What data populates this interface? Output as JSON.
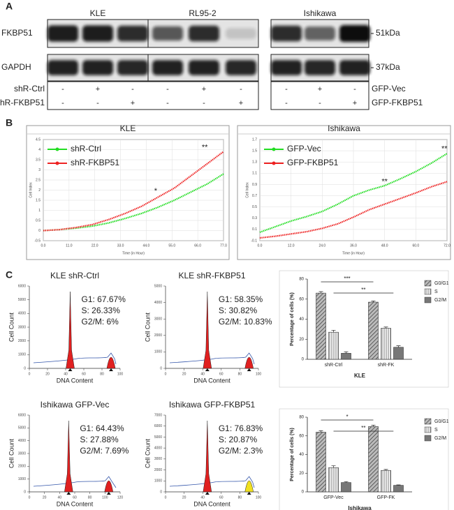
{
  "panel_labels": [
    "A",
    "B",
    "C"
  ],
  "blot": {
    "groups": [
      "KLE",
      "RL95-2",
      "Ishikawa"
    ],
    "rows": [
      "FKBP51",
      "GAPDH"
    ],
    "sizes": [
      "51kDa",
      "37kDa"
    ],
    "treatments_left": [
      {
        "name": "shR-Ctrl",
        "signs": [
          "-",
          "+",
          "-",
          "-",
          "+",
          "-"
        ]
      },
      {
        "name": "shR-FKBP51",
        "signs": [
          "-",
          "-",
          "+",
          "-",
          "-",
          "+"
        ]
      }
    ],
    "treatments_right": [
      {
        "name": "GFP-Vec",
        "signs": [
          "-",
          "+",
          "-"
        ]
      },
      {
        "name": "GFP-FKBP51",
        "signs": [
          "-",
          "-",
          "+"
        ]
      }
    ]
  },
  "chart_data": [
    {
      "type": "line",
      "title": "KLE",
      "xlabel": "Time (in Hour)",
      "ylabel": "Cell Index",
      "legend": "upper left",
      "grid": true,
      "x": [
        0,
        7,
        14,
        21,
        28,
        35,
        42,
        49,
        56,
        63,
        70,
        77
      ],
      "series": [
        {
          "name": "shR-Ctrl",
          "color": "#22dd22",
          "values": [
            0,
            0.05,
            0.12,
            0.22,
            0.38,
            0.6,
            0.85,
            1.15,
            1.5,
            1.9,
            2.3,
            2.8
          ]
        },
        {
          "name": "shR-FKBP51",
          "color": "#ee2222",
          "values": [
            0,
            0.05,
            0.15,
            0.3,
            0.55,
            0.85,
            1.2,
            1.65,
            2.1,
            2.7,
            3.3,
            3.9
          ]
        }
      ],
      "xlim": [
        0,
        77
      ],
      "ylim": [
        -0.5,
        4.5
      ],
      "xticks": [
        {
          "value": 0,
          "label": "0.0"
        },
        {
          "value": 11,
          "label": "11.0"
        },
        {
          "value": 22,
          "label": "22.0"
        },
        {
          "value": 33,
          "label": "33.0"
        },
        {
          "value": 44,
          "label": "44.0"
        },
        {
          "value": 55,
          "label": "55.0"
        },
        {
          "value": 66,
          "label": "66.0"
        },
        {
          "value": 77,
          "label": "77.0"
        }
      ],
      "yticks": [
        -0.5,
        0,
        0.5,
        1,
        1.5,
        2,
        2.5,
        3,
        3.5,
        4,
        4.5
      ],
      "annotations": [
        {
          "text": "*",
          "x": 48,
          "y": 1.95
        },
        {
          "text": "**",
          "x": 69,
          "y": 4.1
        }
      ]
    },
    {
      "type": "line",
      "title": "Ishikawa",
      "xlabel": "Time (in Hour)",
      "ylabel": "Cell Index",
      "legend": "upper left",
      "grid": true,
      "x": [
        0,
        6,
        12,
        18,
        24,
        30,
        36,
        42,
        48,
        54,
        60,
        66,
        72
      ],
      "series": [
        {
          "name": "GFP-Vec",
          "color": "#22dd22",
          "values": [
            0.05,
            0.15,
            0.25,
            0.33,
            0.42,
            0.55,
            0.7,
            0.8,
            0.88,
            1.0,
            1.13,
            1.28,
            1.45
          ]
        },
        {
          "name": "GFP-FKBP51",
          "color": "#ee2222",
          "values": [
            -0.05,
            -0.02,
            0.02,
            0.06,
            0.12,
            0.2,
            0.32,
            0.45,
            0.55,
            0.65,
            0.75,
            0.86,
            0.95
          ]
        }
      ],
      "xlim": [
        0,
        72
      ],
      "ylim": [
        -0.1,
        1.7
      ],
      "xticks": [
        {
          "value": 0,
          "label": "0.0"
        },
        {
          "value": 12,
          "label": "12.0"
        },
        {
          "value": 24,
          "label": "24.0"
        },
        {
          "value": 36,
          "label": "36.0"
        },
        {
          "value": 48,
          "label": "48.0"
        },
        {
          "value": 60,
          "label": "60.0"
        },
        {
          "value": 72,
          "label": "72.0"
        }
      ],
      "yticks": [
        -0.1,
        0.1,
        0.3,
        0.5,
        0.7,
        0.9,
        1.1,
        1.3,
        1.5,
        1.7
      ],
      "annotations": [
        {
          "text": "**",
          "x": 48,
          "y": 0.95
        },
        {
          "text": "**",
          "x": 71,
          "y": 1.53
        }
      ]
    },
    {
      "type": "flow",
      "title": "KLE shR-Ctrl",
      "xlabel": "DNA Content",
      "ylabel": "Cell Count",
      "annotations": [
        "G1: 67.67%",
        "S: 26.33%",
        "G2/M: 6%"
      ],
      "xlim": [
        0,
        100
      ],
      "xticks": [
        0,
        20,
        40,
        60,
        80,
        100
      ],
      "ylim": [
        0,
        6000
      ],
      "yticks": [
        0,
        1000,
        2000,
        3000,
        4000,
        5000,
        6000
      ]
    },
    {
      "type": "flow",
      "title": "KLE shR-FKBP51",
      "xlabel": "DNA Content",
      "ylabel": "Cell Count",
      "annotations": [
        "G1: 58.35%",
        "S: 30.82%",
        "G2/M: 10.83%"
      ],
      "xlim": [
        0,
        100
      ],
      "xticks": [
        0,
        20,
        40,
        60,
        80,
        100
      ],
      "ylim": [
        0,
        5000
      ],
      "yticks": [
        0,
        1000,
        2000,
        3000,
        4000,
        5000
      ]
    },
    {
      "type": "flow",
      "title": "Ishikawa  GFP-Vec",
      "xlabel": "DNA Content",
      "ylabel": "Cell Count",
      "annotations": [
        "G1: 64.43%",
        "S: 27.88%",
        "G2/M: 7.69%"
      ],
      "xlim": [
        0,
        120
      ],
      "xticks": [
        0,
        20,
        40,
        60,
        80,
        100,
        120
      ],
      "ylim": [
        0,
        6000
      ],
      "yticks": [
        0,
        1000,
        2000,
        3000,
        4000,
        5000,
        6000
      ]
    },
    {
      "type": "flow",
      "title": "Ishikawa  GFP-FKBP51",
      "xlabel": "DNA Content",
      "ylabel": "Cell Count",
      "annotations": [
        "G1: 76.83%",
        "S: 20.87%",
        "G2/M: 2.3%"
      ],
      "xlim": [
        0,
        100
      ],
      "xticks": [
        0,
        20,
        40,
        60,
        80,
        100
      ],
      "ylim": [
        0,
        7000
      ],
      "yticks": [
        0,
        1000,
        2000,
        3000,
        4000,
        5000,
        6000,
        7000
      ]
    },
    {
      "type": "bar",
      "xlabel": "KLE",
      "ylabel": "Percentage of cells (%)",
      "categories": [
        "shR-Ctrl",
        "shR-FK"
      ],
      "series": [
        {
          "name": "G0/G1",
          "color": "#999999",
          "hatch": "diagonal",
          "values": [
            66,
            57
          ],
          "errors": [
            1.5,
            1.2
          ]
        },
        {
          "name": "S",
          "color": "#ffffff",
          "hatch": "vertical",
          "values": [
            27,
            31
          ],
          "errors": [
            2,
            1.2
          ]
        },
        {
          "name": "G2/M",
          "color": "#777777",
          "hatch": "none",
          "values": [
            6,
            12
          ],
          "errors": [
            1.5,
            1.5
          ]
        }
      ],
      "ylim": [
        0,
        80
      ],
      "yticks": [
        0,
        20,
        40,
        60,
        80
      ],
      "annotations": [
        "***",
        "**"
      ]
    },
    {
      "type": "bar",
      "xlabel": "Ishikawa",
      "ylabel": "Percentage of cells (%)",
      "categories": [
        "GFP-Vec",
        "GFP-FK"
      ],
      "series": [
        {
          "name": "G0/G1",
          "color": "#999999",
          "hatch": "diagonal",
          "values": [
            64,
            70
          ],
          "errors": [
            1.5,
            1.5
          ]
        },
        {
          "name": "S",
          "color": "#ffffff",
          "hatch": "vertical",
          "values": [
            26,
            23
          ],
          "errors": [
            2,
            1
          ]
        },
        {
          "name": "G2/M",
          "color": "#777777",
          "hatch": "none",
          "values": [
            10,
            7
          ],
          "errors": [
            1,
            0.5
          ]
        }
      ],
      "ylim": [
        0,
        80
      ],
      "yticks": [
        0,
        20,
        40,
        60,
        80
      ],
      "annotations": [
        "*",
        "**"
      ]
    }
  ]
}
